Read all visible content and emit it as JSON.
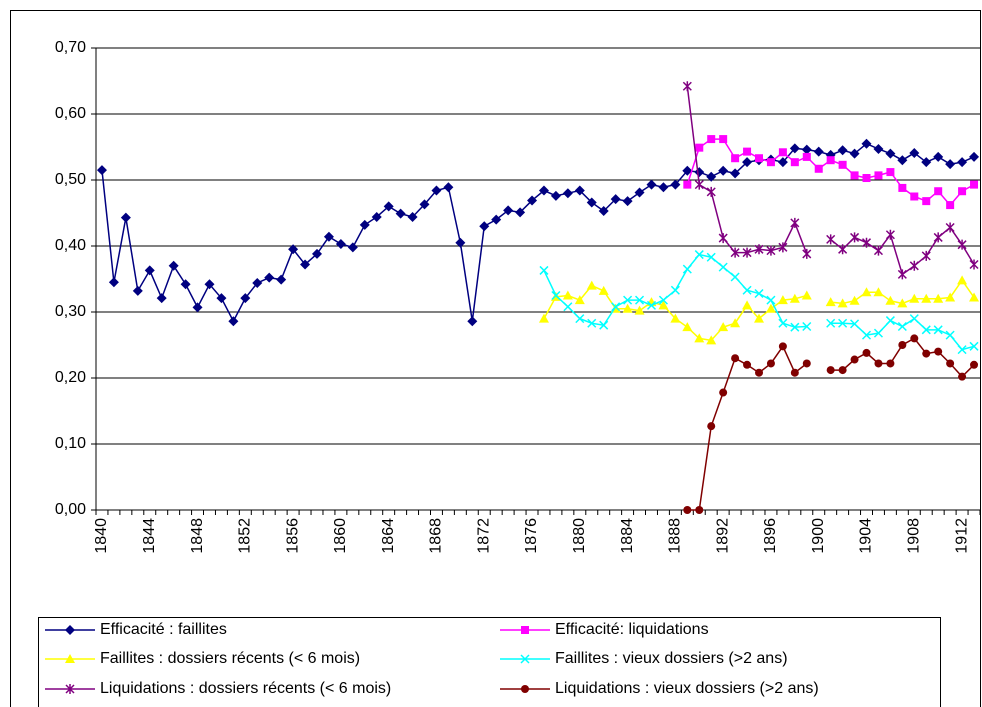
{
  "chart_data": {
    "type": "line",
    "categories": [
      "1840",
      null,
      null,
      null,
      "1844",
      null,
      null,
      null,
      "1848",
      null,
      null,
      null,
      "1852",
      null,
      null,
      null,
      "1856",
      null,
      null,
      null,
      "1860",
      null,
      null,
      null,
      "1864",
      null,
      null,
      null,
      "1868",
      null,
      null,
      null,
      "1872",
      null,
      null,
      null,
      "1876",
      null,
      null,
      null,
      "1880",
      null,
      null,
      null,
      "1884",
      null,
      null,
      null,
      "1888",
      null,
      null,
      null,
      "1892",
      null,
      null,
      null,
      "1896",
      null,
      null,
      null,
      "1900",
      null,
      null,
      null,
      "1904",
      null,
      null,
      null,
      "1908",
      null,
      null,
      null,
      "1912",
      null
    ],
    "ylim": [
      0,
      0.7
    ],
    "yticks": [
      {
        "value": 0,
        "label": "0,00"
      },
      {
        "value": 0.1,
        "label": "0,10"
      },
      {
        "value": 0.2,
        "label": "0,20"
      },
      {
        "value": 0.3,
        "label": "0,30"
      },
      {
        "value": 0.4,
        "label": "0,40"
      },
      {
        "value": 0.5,
        "label": "0,50"
      },
      {
        "value": 0.6,
        "label": "0,60"
      },
      {
        "value": 0.7,
        "label": "0,70"
      }
    ],
    "grid": true,
    "legend": "bottom",
    "series": [
      {
        "name": "Efficacité : faillites",
        "color": "#000080",
        "marker": "diamond",
        "values": [
          0.515,
          0.345,
          0.443,
          0.332,
          0.363,
          0.321,
          0.37,
          0.342,
          0.307,
          0.342,
          0.321,
          0.286,
          0.321,
          0.344,
          0.352,
          0.349,
          0.395,
          0.372,
          0.388,
          0.414,
          0.403,
          0.398,
          0.432,
          0.444,
          0.46,
          0.449,
          0.444,
          0.463,
          0.484,
          0.489,
          0.405,
          0.286,
          0.43,
          0.44,
          0.454,
          0.451,
          0.469,
          0.484,
          0.476,
          0.48,
          0.484,
          0.466,
          0.453,
          0.471,
          0.468,
          0.481,
          0.493,
          0.489,
          0.493,
          0.514,
          0.512,
          0.505,
          0.514,
          0.51,
          0.527,
          0.53,
          0.531,
          0.527,
          0.548,
          0.546,
          0.543,
          0.538,
          0.545,
          0.54,
          0.555,
          0.547,
          0.54,
          0.53,
          0.541,
          0.527,
          0.535,
          0.524,
          0.527,
          0.535
        ]
      },
      {
        "name": "Efficacité: liquidations",
        "color": "#ff00ff",
        "marker": "square",
        "values": [
          null,
          null,
          null,
          null,
          null,
          null,
          null,
          null,
          null,
          null,
          null,
          null,
          null,
          null,
          null,
          null,
          null,
          null,
          null,
          null,
          null,
          null,
          null,
          null,
          null,
          null,
          null,
          null,
          null,
          null,
          null,
          null,
          null,
          null,
          null,
          null,
          null,
          null,
          null,
          null,
          null,
          null,
          null,
          null,
          null,
          null,
          null,
          null,
          null,
          0.493,
          0.549,
          0.562,
          0.562,
          0.533,
          0.543,
          0.533,
          0.527,
          0.542,
          0.527,
          0.535,
          0.517,
          0.53,
          0.523,
          0.507,
          0.503,
          0.507,
          0.512,
          0.488,
          0.475,
          0.468,
          0.483,
          0.462,
          0.483,
          0.493
        ]
      },
      {
        "name": "Faillites : dossiers récents (< 6 mois)",
        "color": "#ffff00",
        "marker": "triangle",
        "values": [
          null,
          null,
          null,
          null,
          null,
          null,
          null,
          null,
          null,
          null,
          null,
          null,
          null,
          null,
          null,
          null,
          null,
          null,
          null,
          null,
          null,
          null,
          null,
          null,
          null,
          null,
          null,
          null,
          null,
          null,
          null,
          null,
          null,
          null,
          null,
          null,
          null,
          0.29,
          0.323,
          0.325,
          0.318,
          0.34,
          0.332,
          0.305,
          0.305,
          0.302,
          0.315,
          0.31,
          0.29,
          0.277,
          0.26,
          0.257,
          0.277,
          0.283,
          0.31,
          0.29,
          0.305,
          0.318,
          0.32,
          0.325,
          null,
          0.315,
          0.313,
          0.317,
          0.33,
          0.33,
          0.317,
          0.313,
          0.32,
          0.32,
          0.32,
          0.322,
          0.348,
          0.322
        ]
      },
      {
        "name": "Faillites : vieux dossiers (>2 ans)",
        "color": "#00ffff",
        "marker": "x",
        "values": [
          null,
          null,
          null,
          null,
          null,
          null,
          null,
          null,
          null,
          null,
          null,
          null,
          null,
          null,
          null,
          null,
          null,
          null,
          null,
          null,
          null,
          null,
          null,
          null,
          null,
          null,
          null,
          null,
          null,
          null,
          null,
          null,
          null,
          null,
          null,
          null,
          null,
          0.363,
          0.325,
          0.308,
          0.29,
          0.283,
          0.28,
          0.308,
          0.318,
          0.318,
          0.31,
          0.318,
          0.333,
          0.365,
          0.387,
          0.383,
          0.368,
          0.353,
          0.333,
          0.328,
          0.318,
          0.283,
          0.277,
          0.278,
          null,
          0.283,
          0.283,
          0.282,
          0.265,
          0.268,
          0.287,
          0.278,
          0.29,
          0.273,
          0.273,
          0.265,
          0.243,
          0.248
        ]
      },
      {
        "name": "Liquidations : dossiers récents (< 6 mois)",
        "color": "#800080",
        "marker": "star",
        "values": [
          null,
          null,
          null,
          null,
          null,
          null,
          null,
          null,
          null,
          null,
          null,
          null,
          null,
          null,
          null,
          null,
          null,
          null,
          null,
          null,
          null,
          null,
          null,
          null,
          null,
          null,
          null,
          null,
          null,
          null,
          null,
          null,
          null,
          null,
          null,
          null,
          null,
          null,
          null,
          null,
          null,
          null,
          null,
          null,
          null,
          null,
          null,
          null,
          null,
          0.642,
          0.493,
          0.482,
          0.412,
          0.39,
          0.39,
          0.395,
          0.393,
          0.398,
          0.435,
          0.388,
          null,
          0.41,
          0.395,
          0.413,
          0.405,
          0.393,
          0.417,
          0.357,
          0.37,
          0.385,
          0.413,
          0.428,
          0.402,
          0.372
        ]
      },
      {
        "name": "Liquidations : vieux dossiers (>2 ans)",
        "color": "#800000",
        "marker": "circle",
        "values": [
          null,
          null,
          null,
          null,
          null,
          null,
          null,
          null,
          null,
          null,
          null,
          null,
          null,
          null,
          null,
          null,
          null,
          null,
          null,
          null,
          null,
          null,
          null,
          null,
          null,
          null,
          null,
          null,
          null,
          null,
          null,
          null,
          null,
          null,
          null,
          null,
          null,
          null,
          null,
          null,
          null,
          null,
          null,
          null,
          null,
          null,
          null,
          null,
          null,
          0,
          0,
          0.127,
          0.178,
          0.23,
          0.22,
          0.208,
          0.222,
          0.248,
          0.208,
          0.222,
          null,
          0.212,
          0.212,
          0.228,
          0.238,
          0.222,
          0.222,
          0.25,
          0.26,
          0.237,
          0.24,
          0.222,
          0.202,
          0.22
        ]
      }
    ]
  }
}
